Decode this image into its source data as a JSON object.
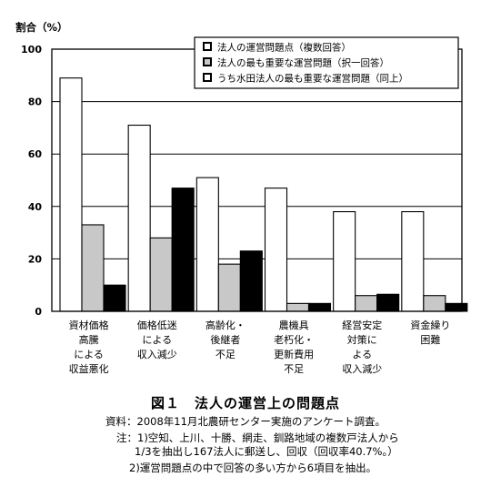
{
  "chart_data": {
    "type": "bar",
    "ylabel": "割合（%）",
    "ylim": [
      0,
      100
    ],
    "yticks": [
      0,
      20,
      40,
      60,
      80,
      100
    ],
    "grid": true,
    "legend_position": "top-right",
    "categories": [
      [
        "資材価格",
        "高騰",
        "による",
        "収益悪化"
      ],
      [
        "価格低迷",
        "による",
        "収入減少"
      ],
      [
        "高齢化・",
        "後継者",
        "不足"
      ],
      [
        "農機具",
        "老朽化・",
        "更新費用",
        "不足"
      ],
      [
        "経営安定",
        "対策に",
        "よる",
        "収入減少"
      ],
      [
        "資金繰り",
        "困難"
      ]
    ],
    "series": [
      {
        "name": "法人の運営問題点（複数回答）",
        "color": "#ffffff",
        "values": [
          89,
          71,
          51,
          47,
          38,
          38
        ]
      },
      {
        "name": "法人の最も重要な運営問題（択一回答）",
        "color": "#c8c8c8",
        "values": [
          33,
          28,
          18,
          3,
          6,
          6
        ]
      },
      {
        "name": "うち水田法人の最も重要な運営問題（同上）",
        "color": "#000000",
        "values": [
          10,
          47,
          23,
          3,
          6.5,
          3
        ]
      }
    ]
  },
  "caption": {
    "title": "図１　法人の運営上の問題点",
    "source": "資料：2008年11月北農研センター実施のアンケート調査。",
    "note1": "注：1)空知、上川、十勝、網走、釧路地域の複数戸法人から",
    "note1b": "1/3を抽出し167法人に郵送し、回収（回収率40.7%。）",
    "note2": "2)運営問題点の中で回答の多い方から6項目を抽出。"
  }
}
